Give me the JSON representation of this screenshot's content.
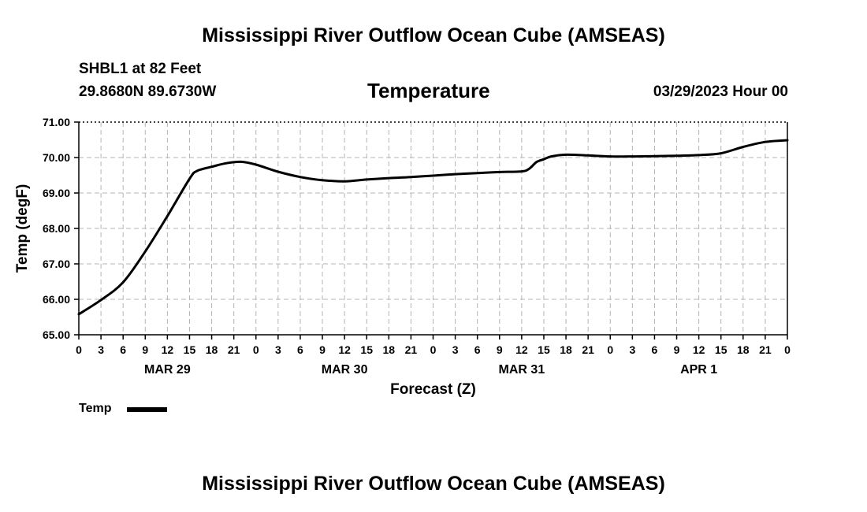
{
  "header": {
    "title": "Mississippi River Outflow Ocean Cube (AMSEAS)",
    "station": "SHBL1 at 82 Feet",
    "coordinates": "29.8680N  89.6730W",
    "variable": "Temperature",
    "datetime": "03/29/2023 Hour 00"
  },
  "footer": {
    "title": "Mississippi River Outflow Ocean Cube (AMSEAS)"
  },
  "legend": {
    "label": "Temp",
    "color": "#000000"
  },
  "chart_data": {
    "type": "line",
    "title": "Temperature",
    "xlabel": "Forecast (Z)",
    "ylabel": "Temp (degF)",
    "ylim": [
      65.0,
      71.0
    ],
    "xlim": [
      0,
      96
    ],
    "grid": true,
    "y_ticks": [
      "65.00",
      "66.00",
      "67.00",
      "68.00",
      "69.00",
      "70.00",
      "71.00"
    ],
    "x_tick_labels": [
      "0",
      "3",
      "6",
      "9",
      "12",
      "15",
      "18",
      "21",
      "0",
      "3",
      "6",
      "9",
      "12",
      "15",
      "18",
      "21",
      "0",
      "3",
      "6",
      "9",
      "12",
      "15",
      "18",
      "21",
      "0",
      "3",
      "6",
      "9",
      "12",
      "15",
      "18",
      "21",
      "0"
    ],
    "day_labels": [
      {
        "label": "MAR 29",
        "hour": 12
      },
      {
        "label": "MAR 30",
        "hour": 36
      },
      {
        "label": "MAR 31",
        "hour": 60
      },
      {
        "label": "APR 1",
        "hour": 84
      }
    ],
    "series": [
      {
        "name": "Temp",
        "x": [
          0,
          3,
          6,
          9,
          12,
          15,
          16,
          18,
          20,
          22,
          24,
          27,
          30,
          33,
          36,
          39,
          42,
          45,
          48,
          51,
          54,
          57,
          60,
          61,
          62,
          63,
          64,
          66,
          69,
          72,
          75,
          78,
          81,
          84,
          87,
          90,
          93,
          96
        ],
        "y": [
          65.58,
          65.98,
          66.48,
          67.35,
          68.35,
          69.4,
          69.62,
          69.74,
          69.84,
          69.88,
          69.8,
          69.6,
          69.45,
          69.36,
          69.33,
          69.38,
          69.42,
          69.45,
          69.49,
          69.53,
          69.56,
          69.59,
          69.61,
          69.68,
          69.87,
          69.95,
          70.03,
          70.08,
          70.06,
          70.03,
          70.03,
          70.04,
          70.05,
          70.07,
          70.12,
          70.3,
          70.44,
          70.49
        ]
      }
    ]
  }
}
